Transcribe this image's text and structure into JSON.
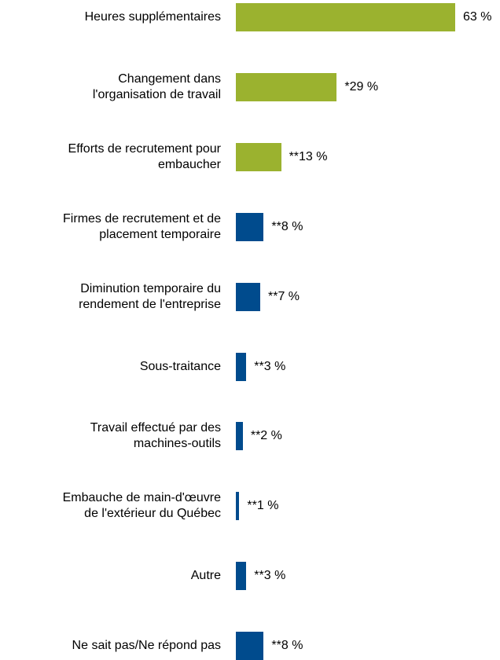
{
  "chart_data": {
    "type": "barh",
    "categories": [
      "Heures supplémentaires",
      "Changement dans\nl'organisation de travail",
      "Efforts de recrutement pour\nembaucher",
      "Firmes de recrutement et de\nplacement temporaire",
      "Diminution temporaire du\nrendement de l'entreprise",
      "Sous-traitance",
      "Travail effectué par des\nmachines-outils",
      "Embauche de main-d'œuvre\nde l'extérieur du Québec",
      "Autre",
      "Ne sait pas/Ne répond pas"
    ],
    "values": [
      63,
      29,
      13,
      8,
      7,
      3,
      2,
      1,
      3,
      8
    ],
    "value_labels": [
      "63 %",
      "*29 %",
      "**13 %",
      "**8 %",
      "**7 %",
      "**3 %",
      "**2 %",
      "**1 %",
      "**3 %",
      "**8 %"
    ],
    "colors": [
      "#9bb22f",
      "#9bb22f",
      "#9bb22f",
      "#004b8d",
      "#004b8d",
      "#004b8d",
      "#004b8d",
      "#004b8d",
      "#004b8d",
      "#004b8d"
    ]
  }
}
